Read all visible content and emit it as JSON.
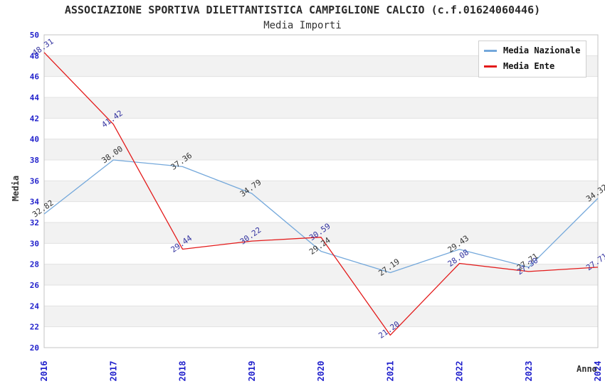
{
  "header": {
    "title": "ASSOCIAZIONE SPORTIVA DILETTANTISTICA CAMPIGLIONE CALCIO (c.f.01624060446)",
    "subtitle": "Media Importi"
  },
  "chart_data": {
    "type": "line",
    "title": "ASSOCIAZIONE SPORTIVA DILETTANTISTICA CAMPIGLIONE CALCIO (c.f.01624060446)",
    "subtitle": "Media Importi",
    "xlabel": "Anno",
    "ylabel": "Media",
    "categories": [
      "2016",
      "2017",
      "2018",
      "2019",
      "2020",
      "2021",
      "2022",
      "2023",
      "2024"
    ],
    "series": [
      {
        "name": "Media Nazionale",
        "color": "#74A8DB",
        "label_color": "#333333",
        "values": [
          32.82,
          38.0,
          37.36,
          34.79,
          29.24,
          27.19,
          29.43,
          27.71,
          34.32
        ]
      },
      {
        "name": "Media Ente",
        "color": "#E31A1A",
        "label_color": "#3333A0",
        "values": [
          48.31,
          41.42,
          29.44,
          30.22,
          30.59,
          21.2,
          28.08,
          27.3,
          27.71
        ]
      }
    ],
    "ylim": [
      20,
      50
    ],
    "ytick_step": 2,
    "tick_color": "#2222CC",
    "band_color": "#F2F2F2",
    "grid_color": "#E2E2E2",
    "plot_border_color": "#C4C4C4",
    "grid": "horizontal-bands",
    "legend_position": "top-right"
  }
}
